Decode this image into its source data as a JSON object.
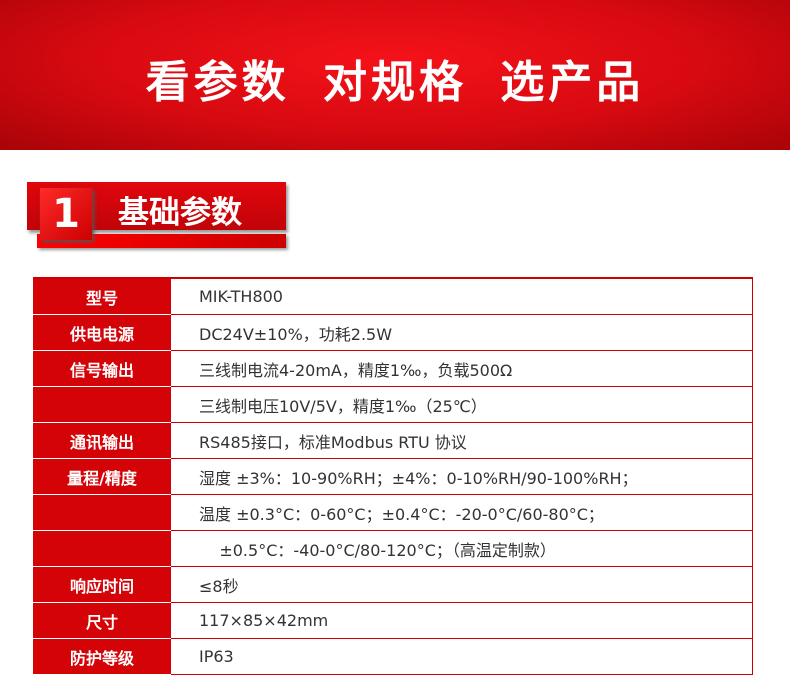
{
  "banner": {
    "title": "看参数 对规格 选产品"
  },
  "section": {
    "number": "1",
    "title": "基础参数"
  },
  "rows": [
    {
      "label": "型号",
      "value": "MIK-TH800"
    },
    {
      "label": "供电电源",
      "value": "DC24V±10%，功耗2.5W"
    },
    {
      "label": "信号输出",
      "value": "三线制电流4-20mA，精度1‰，负载500Ω"
    },
    {
      "label": "",
      "value": "三线制电压10V/5V，精度1‰（25℃）"
    },
    {
      "label": "通讯输出",
      "value": "RS485接口，标准Modbus RTU 协议"
    },
    {
      "label": "量程/精度",
      "value": "湿度 ±3%：10-90%RH；±4%：0-10%RH/90-100%RH；"
    },
    {
      "label": "",
      "value": "温度 ±0.3°C：0-60°C；±0.4°C：-20-0°C/60-80°C；"
    },
    {
      "label": "",
      "value": "    ±0.5°C：-40-0°C/80-120°C；（高温定制款）"
    },
    {
      "label": "响应时间",
      "value": "≤8秒"
    },
    {
      "label": "尺寸",
      "value": "117×85×42mm"
    },
    {
      "label": "防护等级",
      "value": "IP63"
    }
  ]
}
